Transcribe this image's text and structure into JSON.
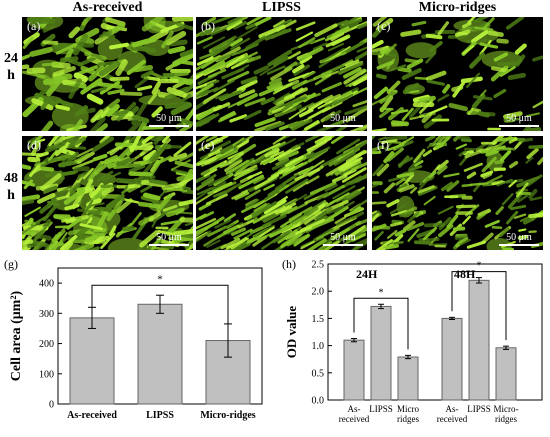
{
  "column_headers": [
    "As-received",
    "LIPSS",
    "Micro-ridges"
  ],
  "row_headers": [
    {
      "value": "24",
      "unit": "h"
    },
    {
      "value": "48",
      "unit": "h"
    }
  ],
  "panels": [
    {
      "label": "(a)",
      "scale": "50 μm",
      "pattern": "patchy"
    },
    {
      "label": "(b)",
      "scale": "50 μm",
      "pattern": "aligned"
    },
    {
      "label": "(c)",
      "scale": "50 μm",
      "pattern": "sparse"
    },
    {
      "label": "(d)",
      "scale": "50 μm",
      "pattern": "dense"
    },
    {
      "label": "(e)",
      "scale": "50 μm",
      "pattern": "aligned-dense"
    },
    {
      "label": "(f)",
      "scale": "50 μm",
      "pattern": "sparse-dense"
    }
  ],
  "colors": {
    "cell_bright": "#b6f03a",
    "cell_mid": "#86c726",
    "cell_dim": "#4f7f16",
    "bar_fill": "#c0c0c0",
    "frame": "#000000"
  },
  "chart_data": [
    {
      "type": "bar",
      "panel_label": "(g)",
      "categories": [
        "As-received",
        "LIPSS",
        "Micro-ridges"
      ],
      "values": [
        285,
        330,
        210
      ],
      "errors": [
        35,
        30,
        55
      ],
      "ylabel": "Cell area (μm²)",
      "ylim": [
        0,
        450
      ],
      "yticks": [
        0,
        100,
        200,
        300,
        400
      ],
      "significance": [
        {
          "from": 0,
          "to": 2,
          "label": "*"
        }
      ]
    },
    {
      "type": "bar",
      "panel_label": "(h)",
      "ylabel": "OD value",
      "ylim": [
        0,
        2.5
      ],
      "yticks": [
        0.0,
        0.5,
        1.0,
        1.5,
        2.0,
        2.5
      ],
      "groups": [
        {
          "name": "24H",
          "categories": [
            [
              "As-",
              "received"
            ],
            [
              "LIPSS"
            ],
            [
              "Micro",
              "ridges"
            ]
          ],
          "values": [
            1.1,
            1.72,
            0.79
          ],
          "errors": [
            0.03,
            0.04,
            0.03
          ]
        },
        {
          "name": "48H",
          "categories": [
            [
              "As-",
              "received"
            ],
            [
              "LIPSS"
            ],
            [
              "Micro-",
              "ridges"
            ]
          ],
          "values": [
            1.5,
            2.2,
            0.96
          ],
          "errors": [
            0.02,
            0.05,
            0.03
          ]
        }
      ],
      "significance": [
        {
          "group": 0,
          "from": 0,
          "to": 2,
          "label": "*"
        },
        {
          "group": 1,
          "from": 0,
          "to": 2,
          "label": "*"
        }
      ]
    }
  ]
}
